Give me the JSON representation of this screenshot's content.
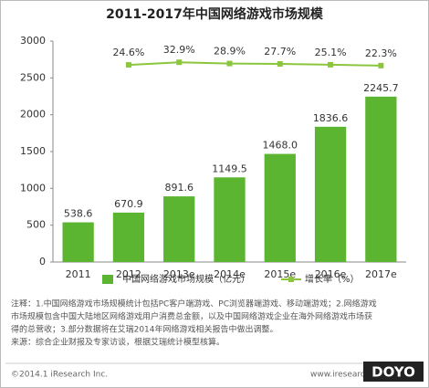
{
  "chart_data": {
    "type": "bar_line",
    "title": "2011-2017年中国网络游戏市场规模",
    "categories": [
      "2011",
      "2012",
      "2013e",
      "2014e",
      "2015e",
      "2016e",
      "2017e"
    ],
    "series": [
      {
        "name": "中国网络游戏市场规模（亿元）",
        "color": "#5bb531",
        "values": [
          538.6,
          670.9,
          891.6,
          1149.5,
          1468.0,
          1836.6,
          2245.7
        ],
        "value_labels": [
          "538.6",
          "670.9",
          "891.6",
          "1149.5",
          "1468.0",
          "1836.6",
          "2245.7"
        ]
      },
      {
        "name": "增长率（%）",
        "color": "#8cc63f",
        "axis": "y2",
        "values": [
          null,
          24.6,
          32.9,
          28.9,
          27.7,
          25.1,
          22.3
        ],
        "value_labels": [
          null,
          "24.6%",
          "32.9%",
          "28.9%",
          "27.7%",
          "25.1%",
          "22.3%"
        ]
      }
    ],
    "ylim": [
      0,
      3000
    ],
    "yticks": [
      0,
      500,
      1000,
      1500,
      2000,
      2500,
      3000
    ],
    "y2lim": [
      -600,
      100
    ],
    "grid": false,
    "legend": "bottom",
    "notes": [
      "注释：1.中国网络游戏市场规模统计包括PC客户端游戏、PC浏览器端游戏、移动端游戏；2.网络游戏",
      "市场规模包含中国大陆地区网络游戏用户消费总金额，以及中国网络游戏企业在海外网络游戏市场获",
      "得的总营收；3.部分数据将在艾瑞2014年网络游戏相关报告中做出调整。",
      "来源：综合企业财报及专家访谈，根据艾瑞统计模型核算。"
    ],
    "copyright": "©2014.1 iResearch Inc.",
    "website": "www.iresearch.com.cn",
    "watermark": "DOYO"
  }
}
